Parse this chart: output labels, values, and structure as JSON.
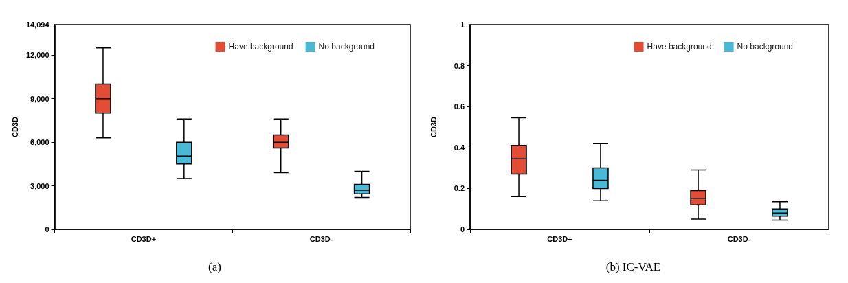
{
  "chart_data": [
    {
      "type": "box",
      "ylabel": "CD3D",
      "categories": [
        "CD3D+",
        "CD3D-"
      ],
      "ylim": [
        0,
        14094
      ],
      "yticks": [
        0,
        {
          "value": 3000,
          "label": "3,000"
        },
        {
          "value": 6000,
          "label": "6,000"
        },
        {
          "value": 9000,
          "label": "9,000"
        },
        {
          "value": 12000,
          "label": "12,000"
        },
        {
          "value": 14094,
          "label": "14,094"
        }
      ],
      "grid": false,
      "legend": "top right",
      "annotations": [
        "(a)"
      ],
      "series": [
        {
          "name": "Have background",
          "color": "#e34c35",
          "boxes": [
            {
              "low": 6300,
              "q1": 8000,
              "median": 9000,
              "q3": 10000,
              "high": 12500
            },
            {
              "low": 3900,
              "q1": 5600,
              "median": 6000,
              "q3": 6500,
              "high": 7600
            }
          ]
        },
        {
          "name": "No background",
          "color": "#4ab9d5",
          "boxes": [
            {
              "low": 3500,
              "q1": 4500,
              "median": 5050,
              "q3": 6000,
              "high": 7600
            },
            {
              "low": 2200,
              "q1": 2450,
              "median": 2700,
              "q3": 3100,
              "high": 4000
            }
          ]
        }
      ]
    },
    {
      "type": "box",
      "ylabel": "CD3D",
      "categories": [
        "CD3D+",
        "CD3D-"
      ],
      "ylim": [
        0,
        1
      ],
      "yticks": [
        0,
        0.2,
        0.4,
        0.6,
        0.8,
        1
      ],
      "grid": false,
      "legend": "top right",
      "annotations": [
        "(b) IC-VAE"
      ],
      "series": [
        {
          "name": "Have background",
          "color": "#e34c35",
          "boxes": [
            {
              "low": 0.16,
              "q1": 0.27,
              "median": 0.345,
              "q3": 0.41,
              "high": 0.545
            },
            {
              "low": 0.05,
              "q1": 0.12,
              "median": 0.15,
              "q3": 0.19,
              "high": 0.29
            }
          ]
        },
        {
          "name": "No background",
          "color": "#4ab9d5",
          "boxes": [
            {
              "low": 0.14,
              "q1": 0.2,
              "median": 0.24,
              "q3": 0.3,
              "high": 0.42
            },
            {
              "low": 0.045,
              "q1": 0.065,
              "median": 0.08,
              "q3": 0.1,
              "high": 0.135
            }
          ]
        }
      ]
    }
  ]
}
